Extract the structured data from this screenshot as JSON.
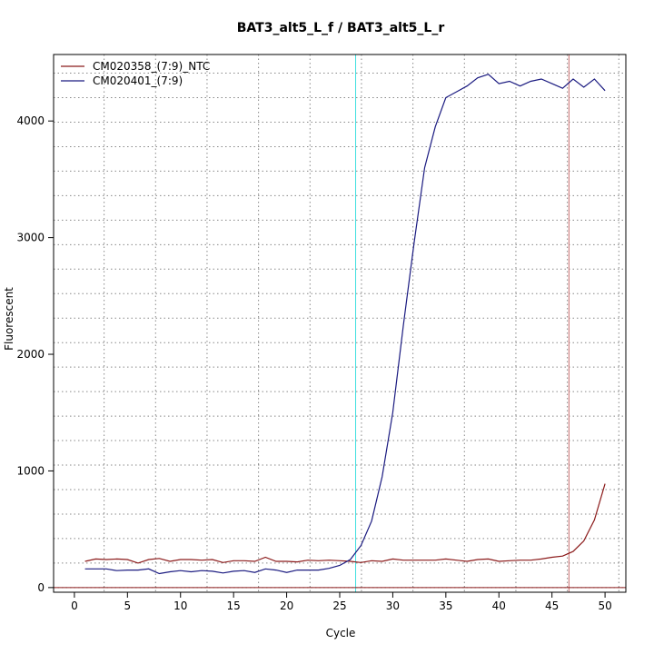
{
  "chart_data": {
    "type": "line",
    "title": "BAT3_alt5_L_f / BAT3_alt5_L_r",
    "xlabel": "Cycle",
    "ylabel": "Fluorescent",
    "xlim": [
      -1.96,
      51.96
    ],
    "ylim": [
      -40,
      4570
    ],
    "x_ticks": [
      0,
      5,
      10,
      15,
      20,
      25,
      30,
      35,
      40,
      45,
      50
    ],
    "y_ticks": [
      0,
      1000,
      2000,
      3000,
      4000
    ],
    "grid": true,
    "legend_position": "top-left",
    "x": [
      1,
      2,
      3,
      4,
      5,
      6,
      7,
      8,
      9,
      10,
      11,
      12,
      13,
      14,
      15,
      16,
      17,
      18,
      19,
      20,
      21,
      22,
      23,
      24,
      25,
      26,
      27,
      28,
      29,
      30,
      31,
      32,
      33,
      34,
      35,
      36,
      37,
      38,
      39,
      40,
      41,
      42,
      43,
      44,
      45,
      46,
      47,
      48,
      49,
      50
    ],
    "series": [
      {
        "name": "CM020358_(7:9)_NTC",
        "color": "#8b1a1a",
        "values": [
          225,
          245,
          240,
          245,
          240,
          210,
          240,
          250,
          225,
          240,
          240,
          235,
          240,
          215,
          230,
          230,
          225,
          260,
          225,
          225,
          220,
          235,
          230,
          235,
          230,
          225,
          215,
          230,
          225,
          245,
          235,
          235,
          235,
          235,
          245,
          235,
          225,
          240,
          245,
          225,
          230,
          235,
          235,
          245,
          260,
          270,
          310,
          400,
          580,
          890
        ]
      },
      {
        "name": "CM020401_(7:9)",
        "color": "#1a1a80",
        "values": [
          160,
          160,
          160,
          145,
          150,
          150,
          160,
          120,
          135,
          145,
          135,
          145,
          140,
          125,
          140,
          145,
          130,
          160,
          150,
          130,
          150,
          150,
          150,
          165,
          190,
          240,
          360,
          570,
          950,
          1500,
          2250,
          2950,
          3600,
          3950,
          4200,
          4250,
          4300,
          4370,
          4400,
          4320,
          4340,
          4300,
          4340,
          4360,
          4320,
          4280,
          4360,
          4290,
          4360,
          4260
        ]
      }
    ],
    "vertical_lines": [
      {
        "x": 26.5,
        "color": "#40e0e0"
      },
      {
        "x": 46.6,
        "color": "#c87070"
      }
    ],
    "horizontal_line": {
      "y": 0,
      "color": "#8b1a1a"
    }
  }
}
